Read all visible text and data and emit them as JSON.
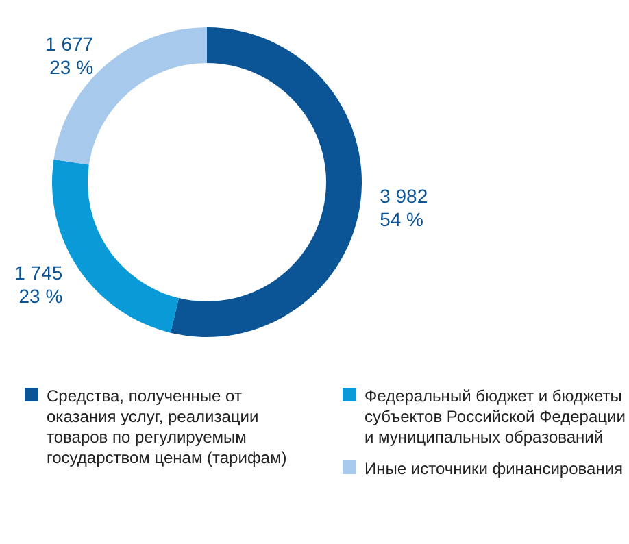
{
  "chart_data": {
    "type": "donut",
    "categories": [
      "Средства, полученные от оказания услуг, реализации товаров по регулируемым государством ценам (тарифам)",
      "Федеральный бюджет и бюджеты субъектов Российской Федерации и муниципальных образований",
      "Иные источники финансирования"
    ],
    "values": [
      3982,
      1745,
      1677
    ],
    "colors": [
      "#0b5496",
      "#0a9ad8",
      "#a7c9eb"
    ],
    "value_labels": [
      "3 982\n54 %",
      "1 745\n23 %",
      "1 677\n23 %"
    ],
    "legend": "bottom"
  }
}
